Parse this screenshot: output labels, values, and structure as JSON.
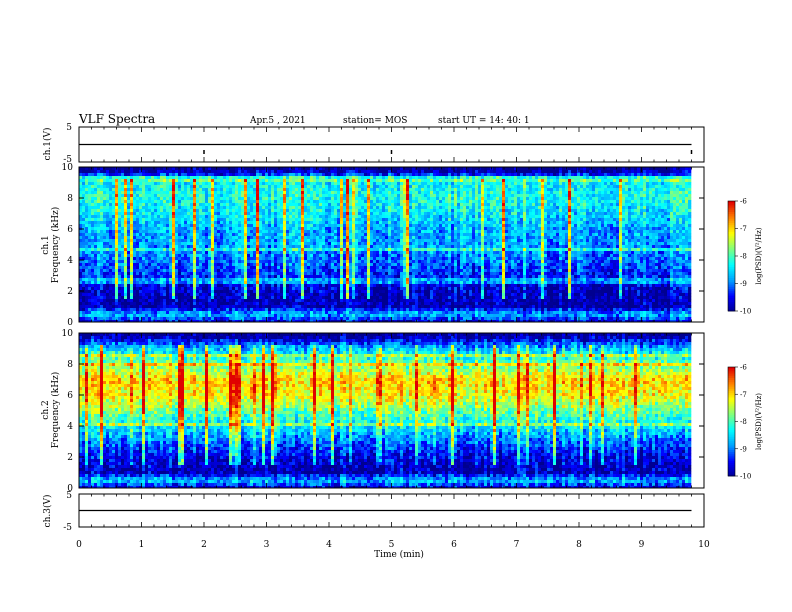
{
  "header": {
    "title": "VLF Spectra",
    "date": "Apr.5  , 2021",
    "station": "station= MOS",
    "start": "start  UT  =   14: 40: 1"
  },
  "colors": {
    "colormap": [
      "#000090",
      "#0000ff",
      "#00a0ff",
      "#00ffff",
      "#7fff7f",
      "#ffff00",
      "#ff8000",
      "#e00000",
      "#ffffff"
    ],
    "line": "#000000",
    "background": "#ffffff"
  },
  "chart_data": [
    {
      "type": "line",
      "ylabel": "ch.1(V)",
      "ylim": [
        -5,
        5
      ],
      "yticks": [
        "5",
        "-5"
      ],
      "x": [
        0,
        9.8
      ],
      "values": [
        0,
        0
      ]
    },
    {
      "type": "heatmap",
      "ylabel": "ch.1\nFrequency (kHz)",
      "ylim": [
        0,
        10
      ],
      "yticks": [
        "0",
        "2",
        "4",
        "6",
        "8",
        "10"
      ],
      "xlim": [
        0,
        10
      ],
      "data_extent_min": 9.8,
      "colorbar": {
        "label": "log(PSD)(V²/Hz)",
        "range": [
          -10,
          -6
        ],
        "ticks": [
          "-6",
          "-7",
          "-8",
          "-9",
          "-10"
        ]
      },
      "band_peak_khz": [
        7,
        9
      ],
      "spectral_level_profile": [
        [
          0,
          -9.6
        ],
        [
          0.5,
          -8.6
        ],
        [
          1,
          -9.8
        ],
        [
          2,
          -9.7
        ],
        [
          3,
          -9.3
        ],
        [
          4,
          -9.0
        ],
        [
          5,
          -8.8
        ],
        [
          6,
          -8.7
        ],
        [
          7,
          -8.4
        ],
        [
          8,
          -8.2
        ],
        [
          9,
          -8.3
        ],
        [
          9.4,
          -9.0
        ],
        [
          9.8,
          -10
        ]
      ]
    },
    {
      "type": "heatmap",
      "ylabel": "ch.2\nFrequency (kHz)",
      "ylim": [
        0,
        10
      ],
      "yticks": [
        "0",
        "2",
        "4",
        "6",
        "8",
        "10"
      ],
      "xlim": [
        0,
        10
      ],
      "data_extent_min": 9.8,
      "colorbar": {
        "label": "log(PSD)(V²/Hz)",
        "range": [
          -10,
          -6
        ],
        "ticks": [
          "-6",
          "-7",
          "-8",
          "-9",
          "-10"
        ]
      },
      "band_peak_khz": [
        6,
        7.5
      ],
      "spectral_level_profile": [
        [
          0,
          -9.6
        ],
        [
          0.5,
          -8.6
        ],
        [
          1,
          -9.8
        ],
        [
          2,
          -9.6
        ],
        [
          3,
          -9.0
        ],
        [
          4,
          -8.4
        ],
        [
          5,
          -7.8
        ],
        [
          6,
          -7.1
        ],
        [
          7,
          -7.0
        ],
        [
          8,
          -7.8
        ],
        [
          9,
          -8.6
        ],
        [
          9.6,
          -9.6
        ],
        [
          9.8,
          -10
        ]
      ]
    },
    {
      "type": "line",
      "ylabel": "ch.3(V)",
      "ylim": [
        -5,
        5
      ],
      "yticks": [
        "5",
        "-5"
      ],
      "x": [
        0,
        9.8
      ],
      "values": [
        0,
        0
      ],
      "xlabel": "Time (min)",
      "xlim": [
        0,
        10
      ],
      "xticks": [
        "0",
        "1",
        "2",
        "3",
        "4",
        "5",
        "6",
        "7",
        "8",
        "9",
        "10"
      ]
    }
  ]
}
